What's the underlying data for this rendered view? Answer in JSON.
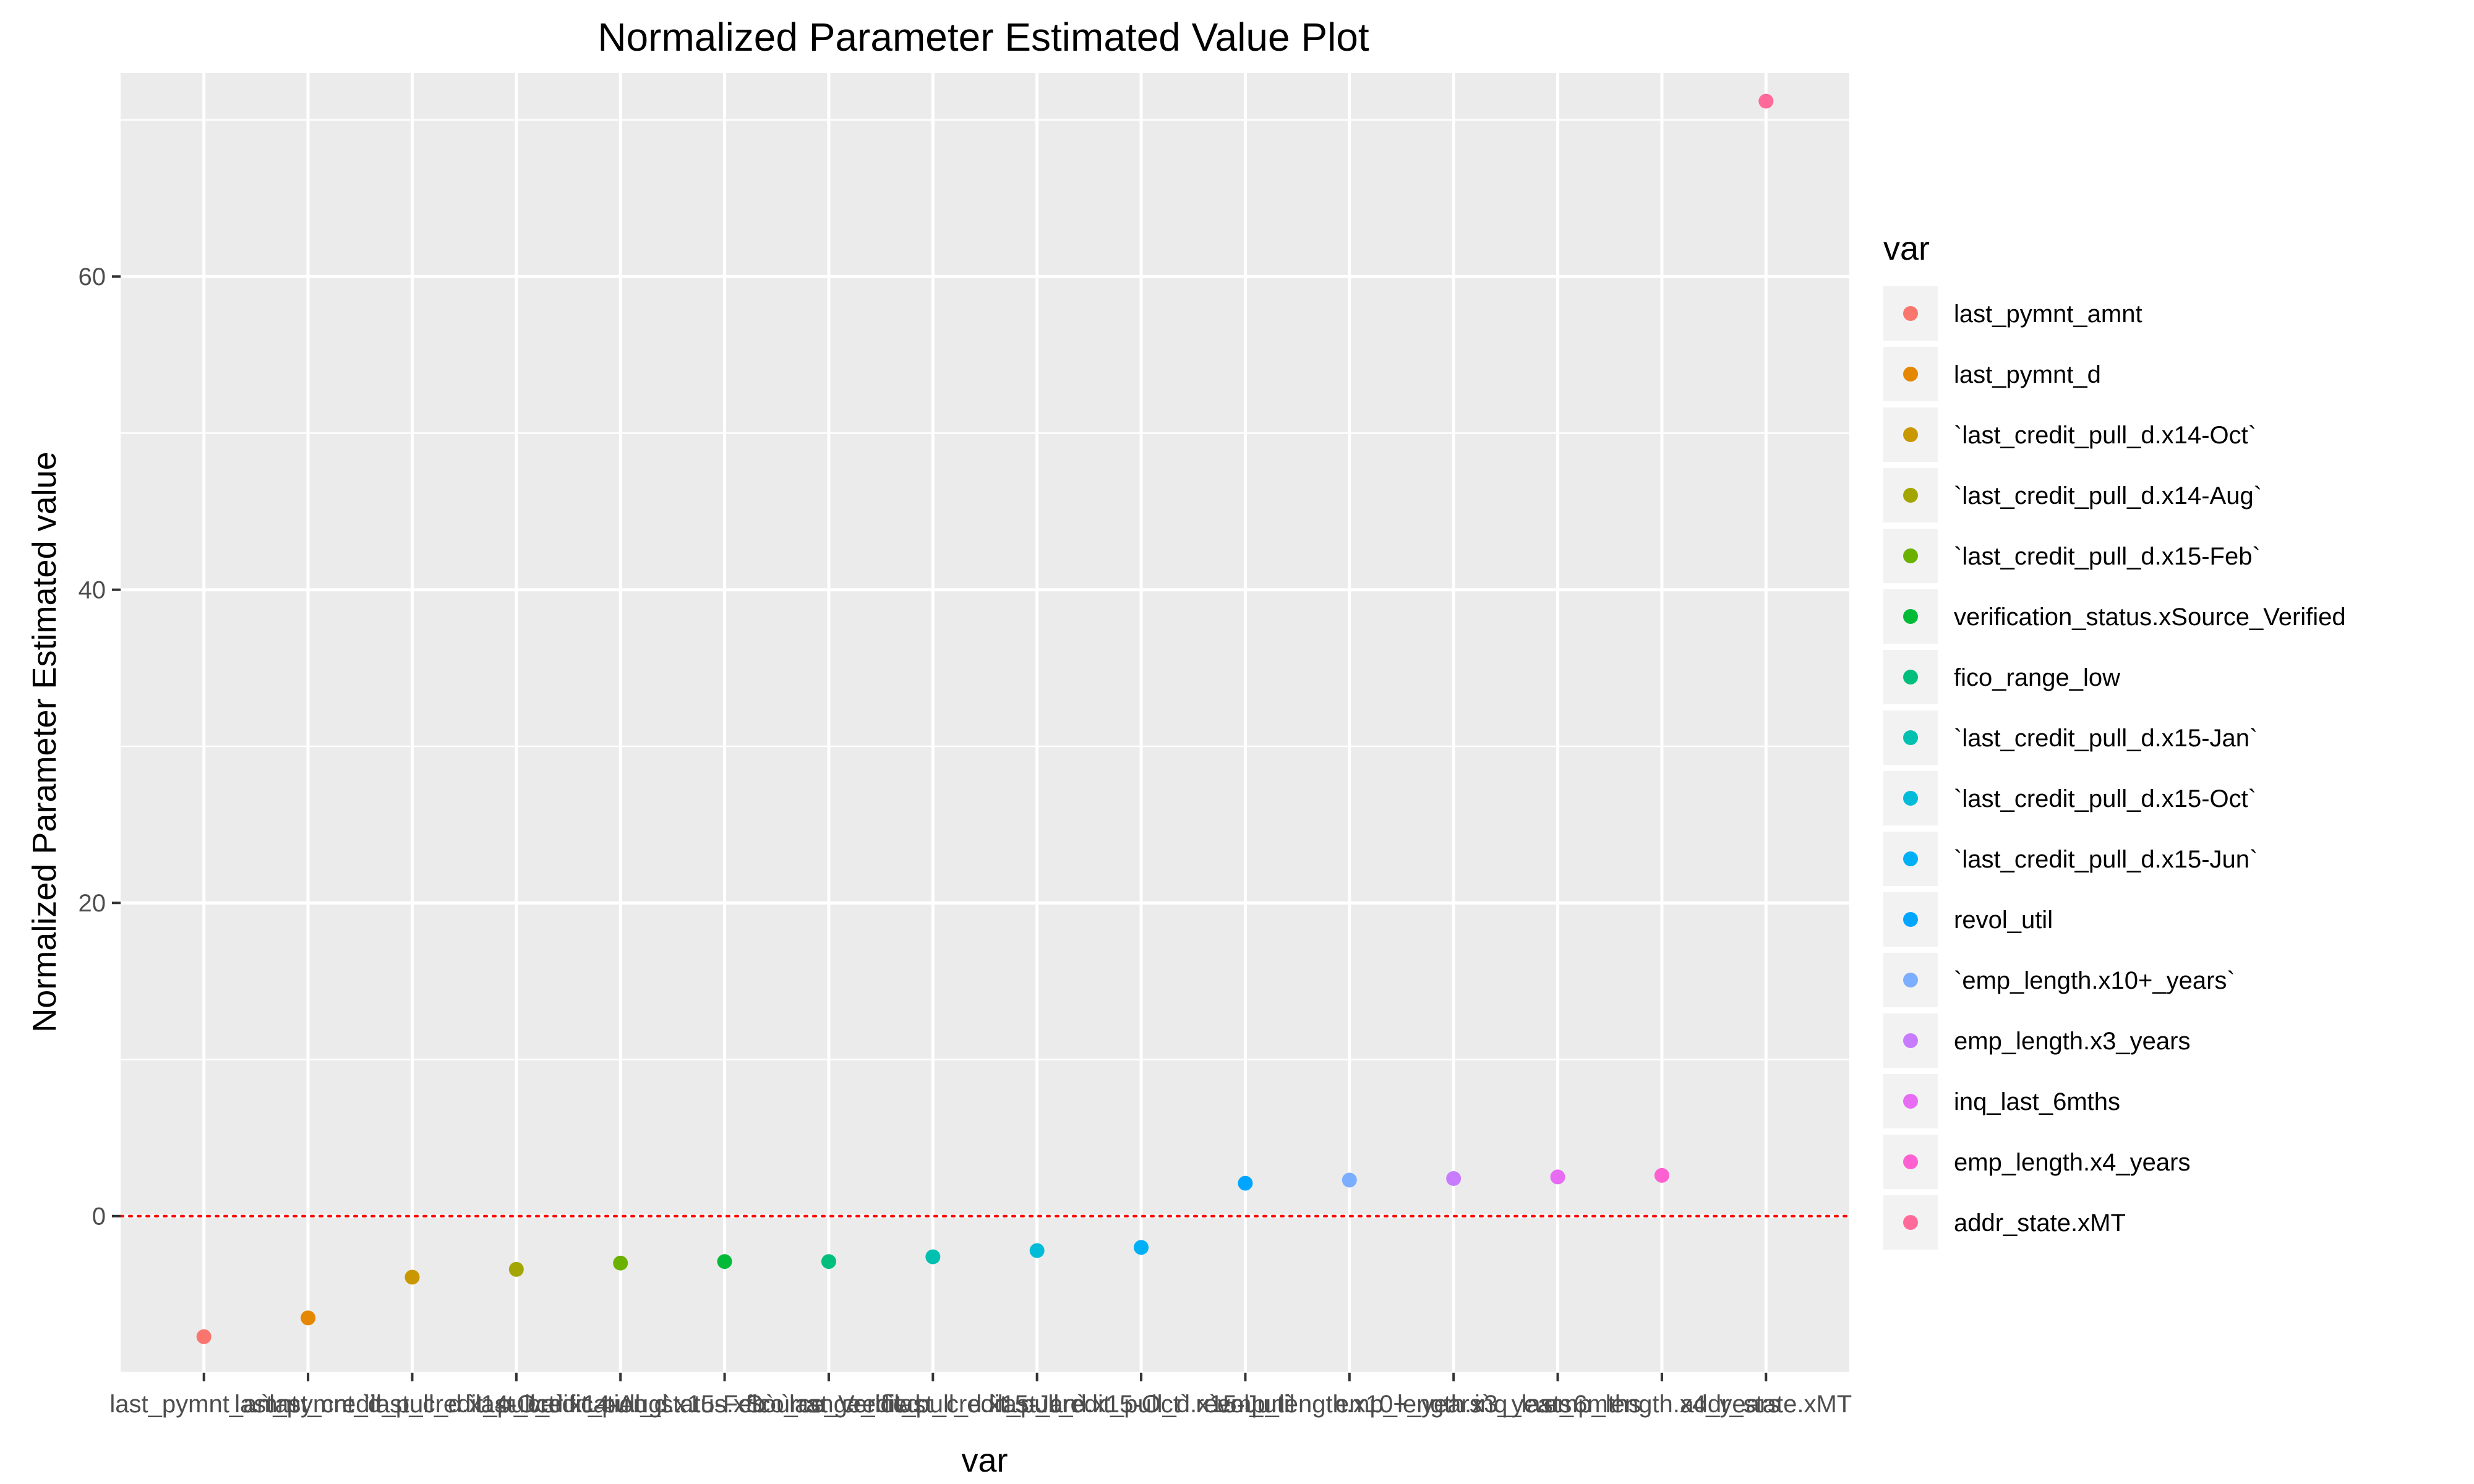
{
  "chart_data": {
    "type": "scatter",
    "title": "Normalized Parameter Estimated Value Plot",
    "xlabel": "var",
    "ylabel": "Normalized Parameter Estimated value",
    "ylim": [
      -10,
      73
    ],
    "yticks": [
      0,
      20,
      40,
      60
    ],
    "reference_line": {
      "y": 0,
      "style": "dotted",
      "color": "#ff0000"
    },
    "grid": true,
    "legend": {
      "title": "var",
      "position": "right"
    },
    "panel_background": "#ebebeb",
    "grid_color": "#ffffff",
    "points": [
      {
        "label": "last_pymnt_amnt",
        "value": -7.7,
        "color": "#F8766D"
      },
      {
        "label": "last_pymnt_d",
        "value": -6.5,
        "color": "#E58700"
      },
      {
        "label": "`last_credit_pull_d.x14-Oct`",
        "value": -3.9,
        "color": "#C99800"
      },
      {
        "label": "`last_credit_pull_d.x14-Aug`",
        "value": -3.4,
        "color": "#A3A500"
      },
      {
        "label": "`last_credit_pull_d.x15-Feb`",
        "value": -3.0,
        "color": "#6BB100"
      },
      {
        "label": "verification_status.xSource_Verified",
        "value": -2.9,
        "color": "#00BA38"
      },
      {
        "label": "fico_range_low",
        "value": -2.9,
        "color": "#00BF7D"
      },
      {
        "label": "`last_credit_pull_d.x15-Jan`",
        "value": -2.6,
        "color": "#00C0AF"
      },
      {
        "label": "`last_credit_pull_d.x15-Oct`",
        "value": -2.2,
        "color": "#00BCD8"
      },
      {
        "label": "`last_credit_pull_d.x15-Jun`",
        "value": -2.0,
        "color": "#00B0F6"
      },
      {
        "label": "revol_util",
        "value": 2.1,
        "color": "#00A5FF"
      },
      {
        "label": "`emp_length.x10+_years`",
        "value": 2.3,
        "color": "#7CAEFF"
      },
      {
        "label": "emp_length.x3_years",
        "value": 2.4,
        "color": "#C77CFF"
      },
      {
        "label": "inq_last_6mths",
        "value": 2.5,
        "color": "#E76BF3"
      },
      {
        "label": "emp_length.x4_years",
        "value": 2.6,
        "color": "#FD61D1"
      },
      {
        "label": "addr_state.xMT",
        "value": 71.2,
        "color": "#FF6A98"
      }
    ]
  }
}
